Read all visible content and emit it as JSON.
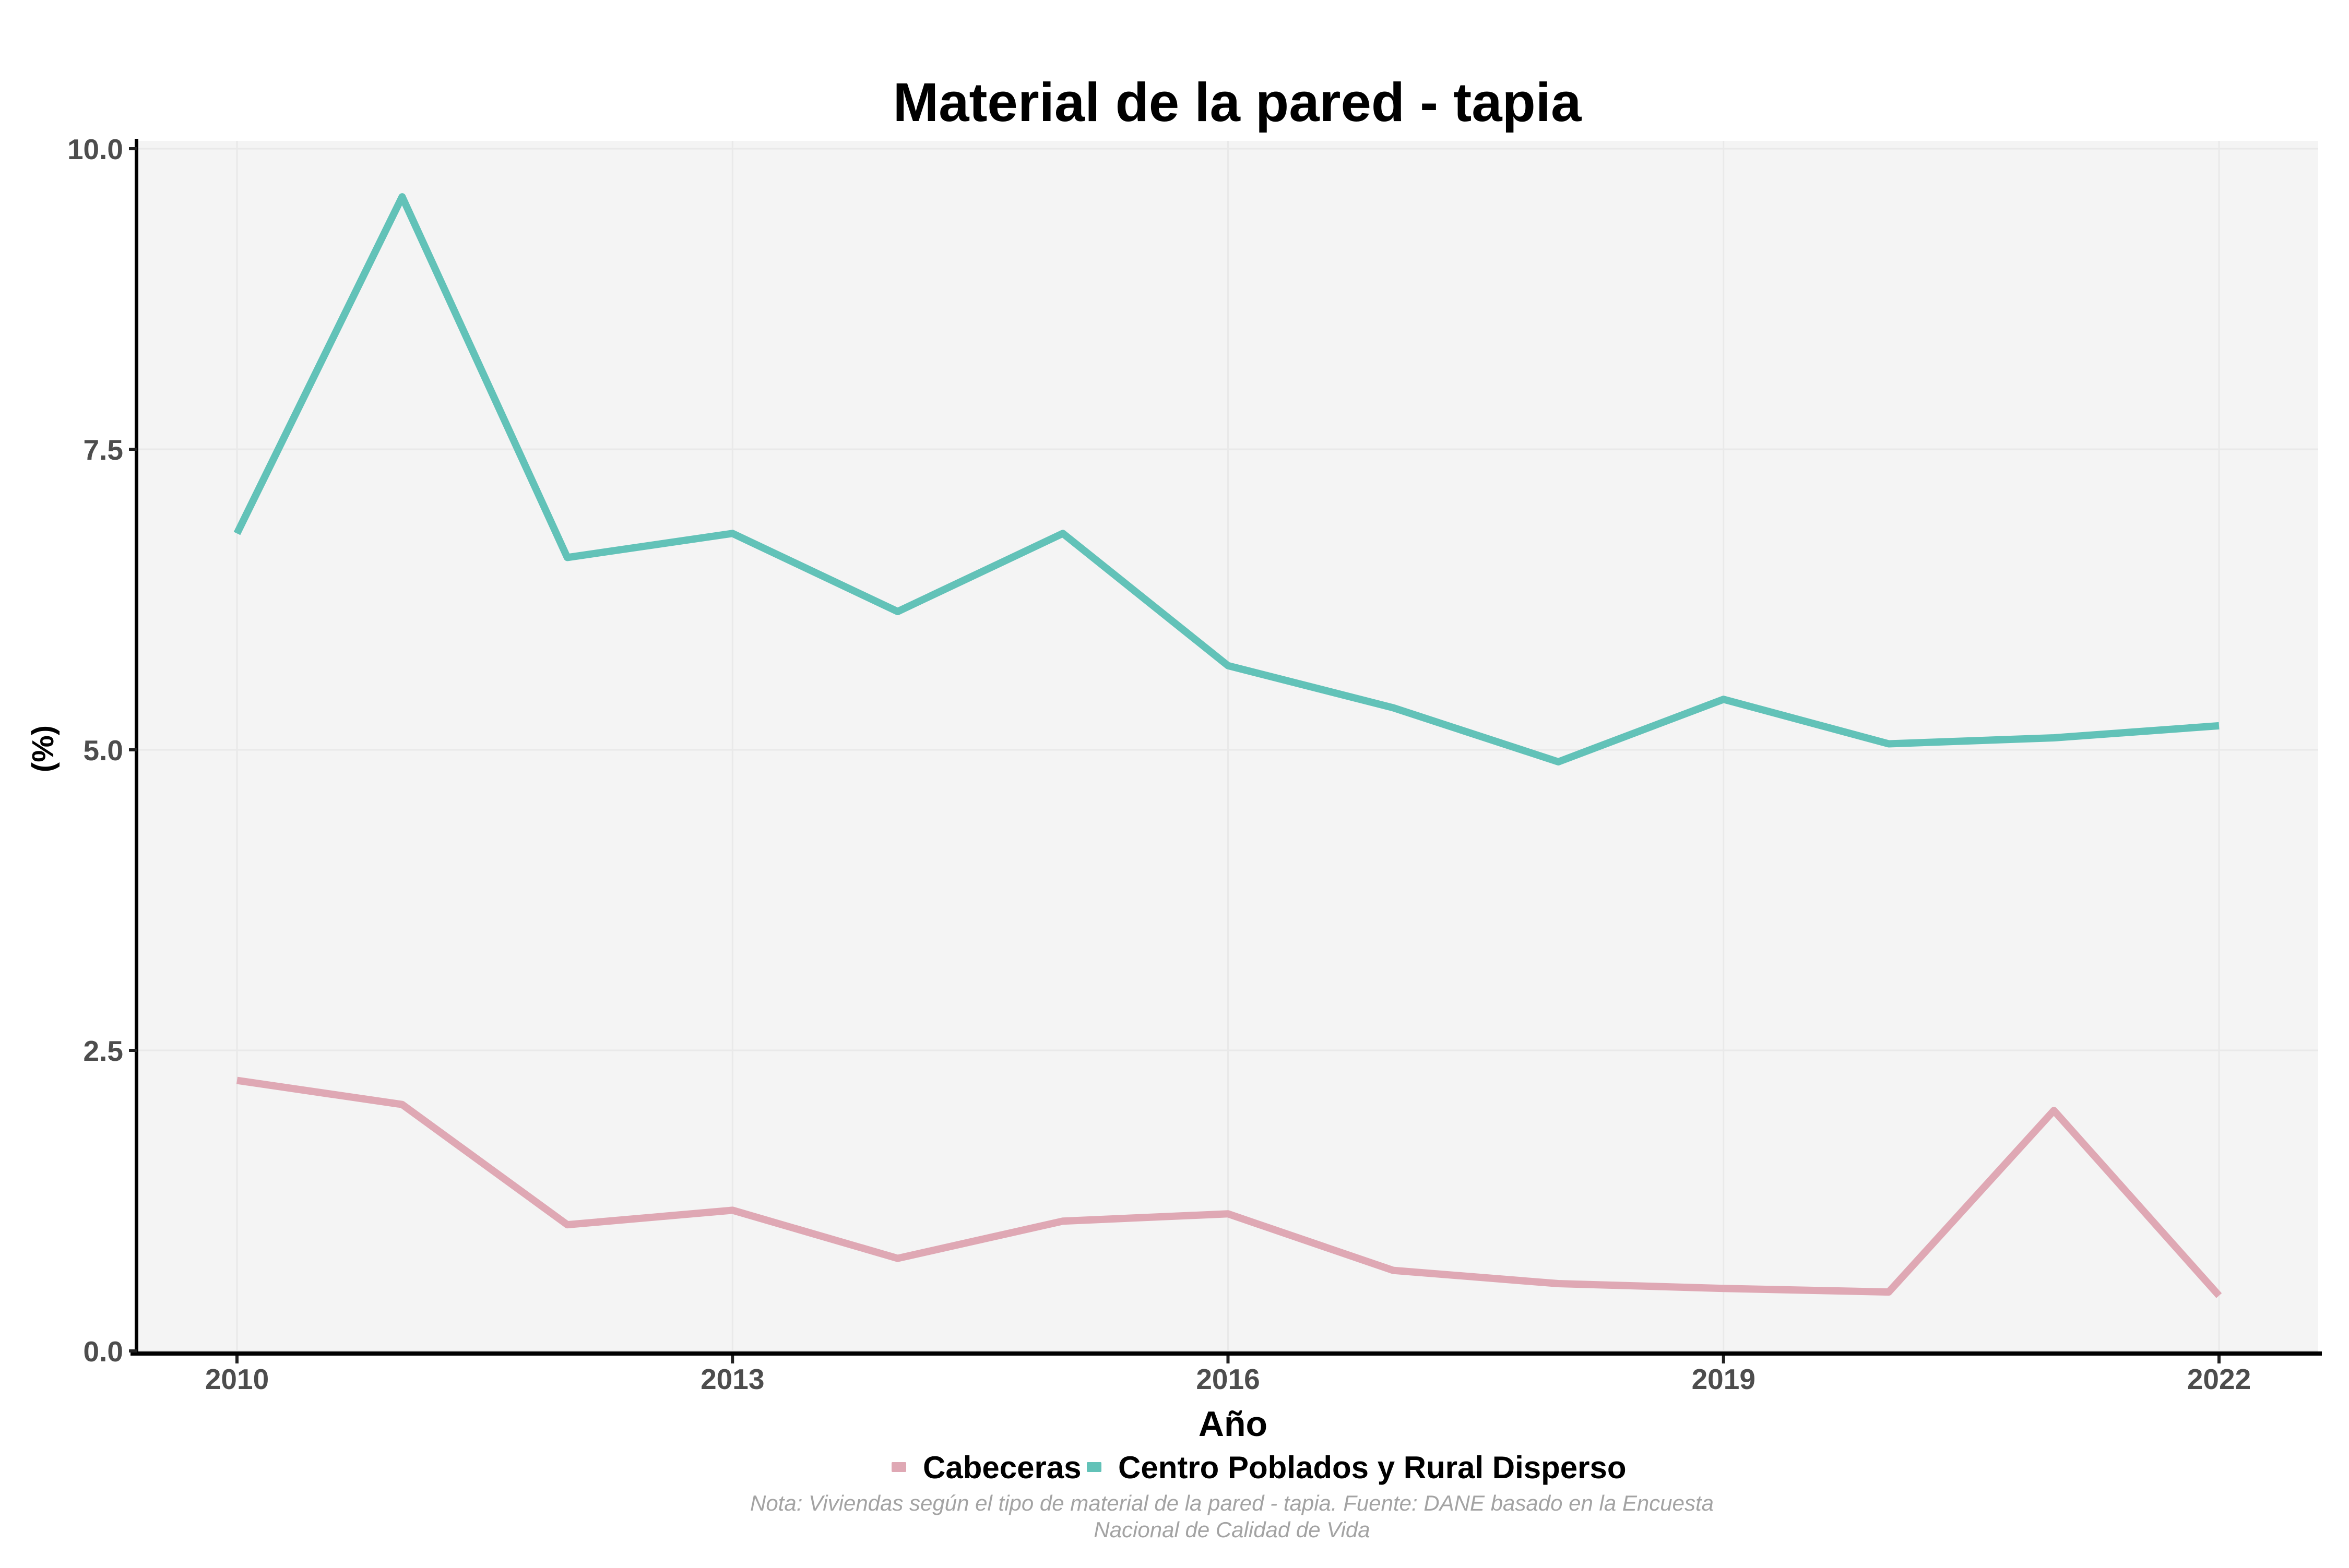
{
  "page": {
    "title": "Material de la pared - tapia"
  },
  "chart_data": {
    "type": "line",
    "title": "Material de la pared - tapia",
    "xlabel": "Año",
    "ylabel": "(%)",
    "x": [
      2010,
      2011,
      2012,
      2013,
      2014,
      2015,
      2016,
      2017,
      2018,
      2019,
      2020,
      2021,
      2022
    ],
    "series": [
      {
        "name": "Cabeceras",
        "color": "#DFA8B4",
        "values": [
          2.25,
          2.05,
          1.05,
          1.17,
          0.77,
          1.08,
          1.14,
          0.67,
          0.56,
          0.52,
          0.49,
          2.0,
          0.46
        ]
      },
      {
        "name": "Centro Poblados y Rural Disperso",
        "color": "#62C2B8",
        "values": [
          6.8,
          9.6,
          6.6,
          6.8,
          6.15,
          6.8,
          5.7,
          5.35,
          4.9,
          5.42,
          5.05,
          5.1,
          5.2
        ]
      }
    ],
    "xlim": [
      2009.4,
      2022.6
    ],
    "ylim": [
      0,
      10
    ],
    "x_ticks": [
      2010,
      2013,
      2016,
      2019,
      2022
    ],
    "x_tick_labels": [
      "2010",
      "2013",
      "2016",
      "2019",
      "2022"
    ],
    "y_ticks": [
      0,
      2.5,
      5,
      7.5,
      10
    ],
    "y_tick_labels": [
      "0.0",
      "2.5",
      "5.0",
      "7.5",
      "10.0"
    ],
    "grid": "major",
    "legend_position": "bottom",
    "note_line1": "Nota: Viviendas según el tipo de material de la pared - tapia. Fuente: DANE basado en la Encuesta",
    "note_line2": "Nacional de Calidad de Vida",
    "style": {
      "panel_bg": "#F4F4F4",
      "grid_color": "#E9E9E9",
      "axis_line_color": "#000000",
      "tick_label_color": "#4D4D4D",
      "note_color": "#A3A3A3"
    }
  }
}
